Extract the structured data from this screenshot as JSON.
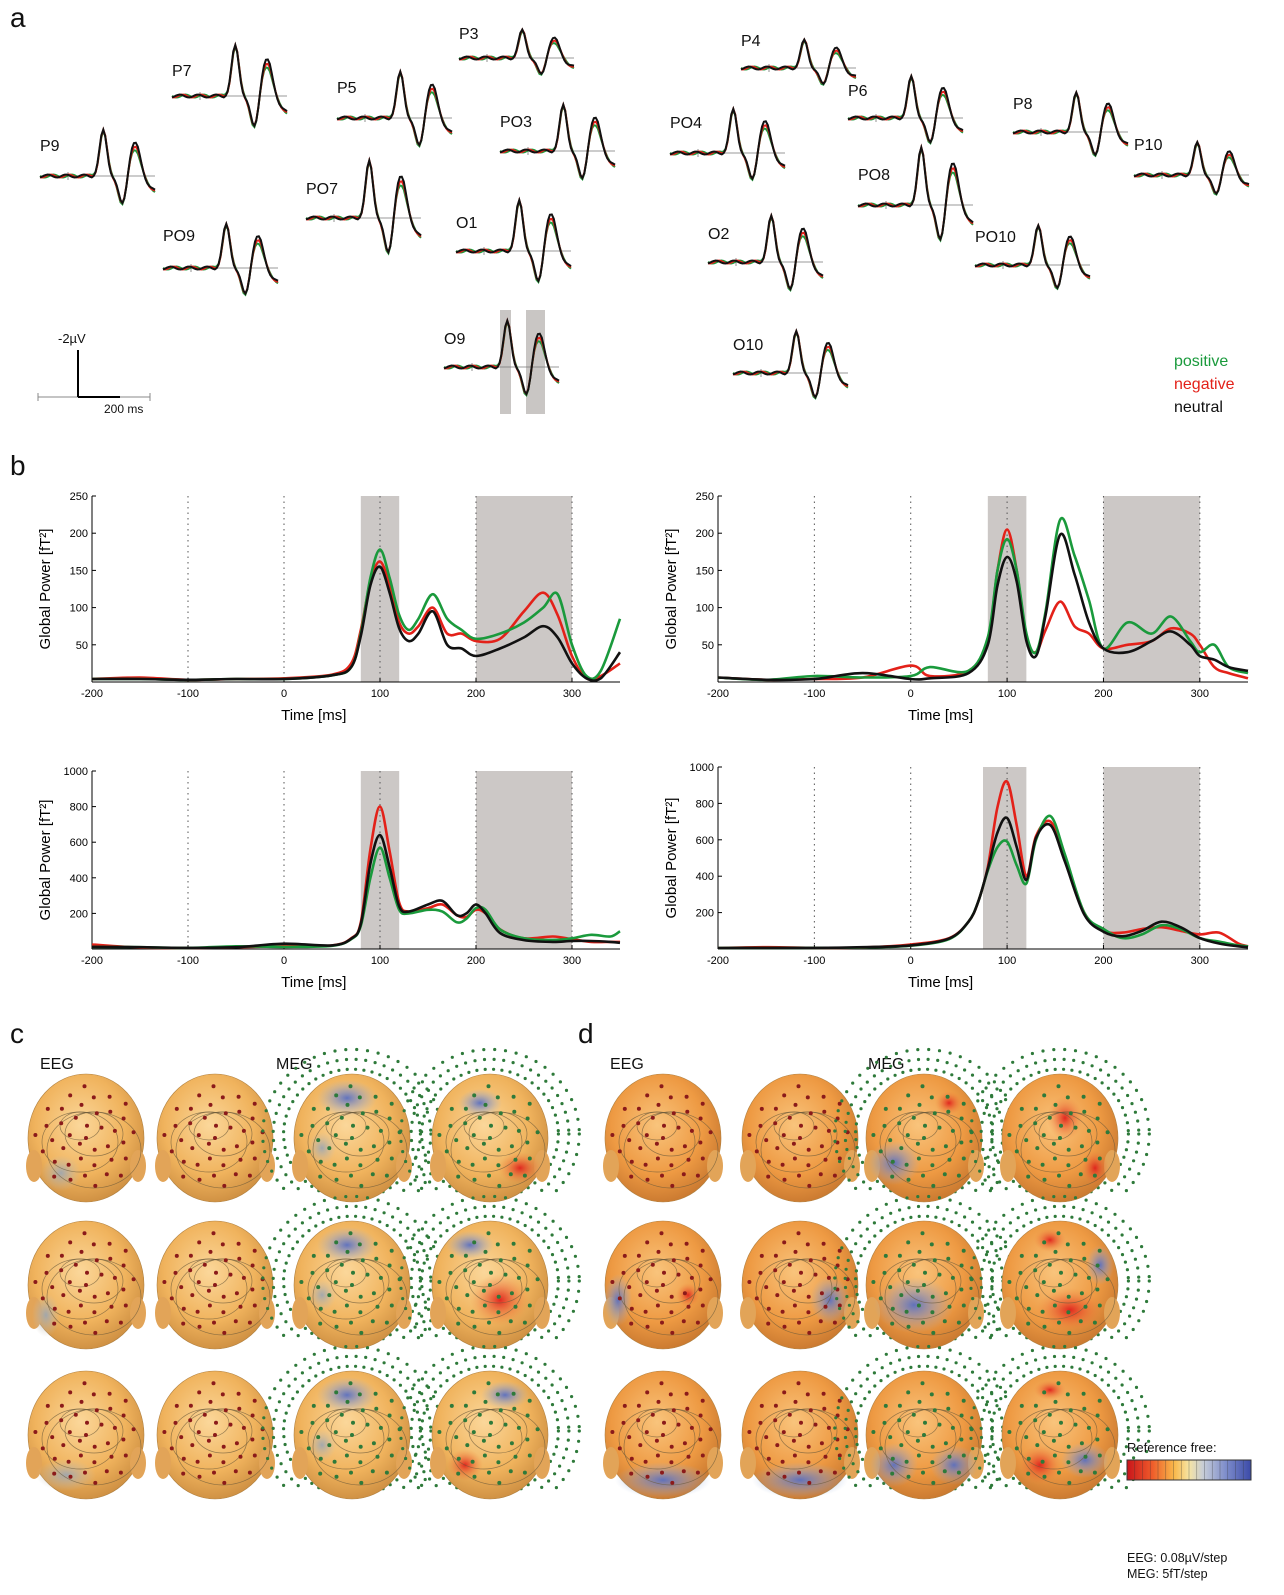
{
  "panels": {
    "a": "a",
    "b": "b",
    "c": "c",
    "d": "d"
  },
  "erp": {
    "channels": [
      "P9",
      "P7",
      "PO9",
      "P5",
      "PO7",
      "P3",
      "PO3",
      "O1",
      "O9",
      "P4",
      "PO4",
      "O2",
      "O10",
      "P6",
      "PO8",
      "P8",
      "PO10",
      "P10"
    ],
    "scale_amp": "-2µV",
    "scale_time": "200 ms",
    "legend": {
      "positive": {
        "label": "positive",
        "color": "#1a9a3c"
      },
      "negative": {
        "label": "negative",
        "color": "#e32119"
      },
      "neutral": {
        "label": "neutral",
        "color": "#111111"
      }
    }
  },
  "chart_data": [
    {
      "type": "line",
      "ylabel": "Global Power [fT²]",
      "xlabel": "Time [ms]",
      "xlim": [
        -200,
        350
      ],
      "ylim": [
        0,
        250
      ],
      "x_ticks": [
        -200,
        -100,
        0,
        100,
        200,
        300
      ],
      "y_ticks": [
        50,
        100,
        150,
        200,
        250
      ],
      "shaded": [
        [
          80,
          120
        ],
        [
          200,
          300
        ]
      ],
      "x": [
        -200,
        -150,
        -100,
        -50,
        0,
        50,
        70,
        80,
        90,
        100,
        110,
        120,
        130,
        140,
        155,
        170,
        185,
        200,
        225,
        250,
        270,
        285,
        300,
        315,
        330,
        350
      ],
      "series": [
        {
          "color": "#e32119",
          "values": [
            4,
            6,
            3,
            4,
            5,
            10,
            25,
            70,
            135,
            162,
            130,
            80,
            65,
            75,
            100,
            65,
            65,
            55,
            58,
            95,
            120,
            90,
            35,
            5,
            8,
            25
          ]
        },
        {
          "color": "#1a9a3c",
          "values": [
            4,
            4,
            3,
            4,
            4,
            9,
            20,
            65,
            140,
            178,
            140,
            90,
            70,
            85,
            118,
            85,
            70,
            58,
            65,
            80,
            100,
            118,
            50,
            8,
            15,
            85
          ]
        },
        {
          "color": "#111111",
          "values": [
            4,
            4,
            3,
            4,
            4,
            9,
            20,
            62,
            130,
            155,
            120,
            72,
            55,
            65,
            95,
            50,
            45,
            35,
            45,
            60,
            75,
            60,
            25,
            5,
            5,
            40
          ]
        }
      ]
    },
    {
      "type": "line",
      "ylabel": "Global Power [fT²]",
      "xlabel": "Time [ms]",
      "xlim": [
        -200,
        350
      ],
      "ylim": [
        0,
        250
      ],
      "x_ticks": [
        -200,
        -100,
        0,
        100,
        200,
        300
      ],
      "y_ticks": [
        50,
        100,
        150,
        200,
        250
      ],
      "shaded": [
        [
          80,
          120
        ],
        [
          200,
          300
        ]
      ],
      "x": [
        -200,
        -150,
        -100,
        -50,
        0,
        20,
        60,
        80,
        90,
        100,
        110,
        120,
        130,
        140,
        155,
        170,
        185,
        200,
        225,
        250,
        270,
        290,
        300,
        315,
        330,
        350
      ],
      "series": [
        {
          "color": "#e32119",
          "values": [
            6,
            3,
            4,
            6,
            22,
            8,
            15,
            55,
            150,
            205,
            150,
            60,
            40,
            70,
            108,
            75,
            65,
            45,
            50,
            55,
            72,
            65,
            50,
            20,
            12,
            5
          ]
        },
        {
          "color": "#1a9a3c",
          "values": [
            6,
            3,
            8,
            6,
            8,
            20,
            15,
            60,
            150,
            192,
            150,
            65,
            40,
            95,
            218,
            170,
            110,
            45,
            80,
            65,
            88,
            55,
            40,
            50,
            20,
            12
          ]
        },
        {
          "color": "#111111",
          "values": [
            6,
            3,
            4,
            12,
            4,
            5,
            12,
            50,
            130,
            168,
            135,
            55,
            35,
            90,
            198,
            145,
            80,
            45,
            40,
            55,
            68,
            50,
            35,
            30,
            20,
            15
          ]
        }
      ]
    },
    {
      "type": "line",
      "ylabel": "Global Power [fT²]",
      "xlabel": "Time [ms]",
      "xlim": [
        -200,
        350
      ],
      "ylim": [
        0,
        1000
      ],
      "x_ticks": [
        -200,
        -100,
        0,
        100,
        200,
        300
      ],
      "y_ticks": [
        200,
        400,
        600,
        800,
        1000
      ],
      "shaded": [
        [
          80,
          120
        ],
        [
          200,
          300
        ]
      ],
      "x": [
        -200,
        -150,
        -100,
        -50,
        0,
        50,
        70,
        80,
        90,
        100,
        110,
        120,
        130,
        150,
        165,
        180,
        190,
        200,
        210,
        225,
        250,
        280,
        300,
        320,
        340,
        350
      ],
      "series": [
        {
          "color": "#e32119",
          "values": [
            25,
            8,
            6,
            10,
            15,
            20,
            60,
            150,
            560,
            800,
            550,
            260,
            210,
            230,
            250,
            190,
            180,
            220,
            200,
            110,
            60,
            70,
            55,
            40,
            40,
            40
          ]
        },
        {
          "color": "#1a9a3c",
          "values": [
            12,
            10,
            6,
            15,
            12,
            18,
            55,
            130,
            400,
            570,
            400,
            220,
            200,
            220,
            210,
            150,
            170,
            230,
            220,
            110,
            60,
            50,
            60,
            80,
            70,
            100
          ]
        },
        {
          "color": "#111111",
          "values": [
            12,
            10,
            6,
            10,
            30,
            20,
            58,
            140,
            480,
            640,
            460,
            240,
            210,
            250,
            270,
            190,
            200,
            250,
            200,
            90,
            50,
            40,
            45,
            45,
            40,
            35
          ]
        }
      ]
    },
    {
      "type": "line",
      "ylabel": "Global Power [fT²]",
      "xlabel": "Time [ms]",
      "xlim": [
        -200,
        350
      ],
      "ylim": [
        0,
        1000
      ],
      "x_ticks": [
        -200,
        -100,
        0,
        100,
        200,
        300
      ],
      "y_ticks": [
        200,
        400,
        600,
        800,
        1000
      ],
      "shaded": [
        [
          75,
          120
        ],
        [
          200,
          300
        ]
      ],
      "x": [
        -200,
        -150,
        -100,
        -50,
        0,
        40,
        60,
        70,
        80,
        90,
        100,
        110,
        120,
        130,
        145,
        160,
        180,
        200,
        220,
        240,
        260,
        280,
        300,
        320,
        340,
        350
      ],
      "series": [
        {
          "color": "#e32119",
          "values": [
            5,
            10,
            6,
            8,
            25,
            60,
            150,
            260,
            450,
            780,
            920,
            680,
            400,
            620,
            700,
            500,
            200,
            100,
            90,
            110,
            120,
            100,
            80,
            90,
            30,
            15
          ]
        },
        {
          "color": "#1a9a3c",
          "values": [
            5,
            6,
            6,
            8,
            18,
            55,
            150,
            260,
            430,
            560,
            590,
            460,
            360,
            600,
            730,
            520,
            200,
            110,
            60,
            80,
            130,
            110,
            60,
            40,
            20,
            15
          ]
        },
        {
          "color": "#111111",
          "values": [
            5,
            6,
            6,
            10,
            20,
            58,
            150,
            260,
            440,
            640,
            720,
            560,
            380,
            610,
            680,
            480,
            190,
            95,
            70,
            100,
            150,
            120,
            60,
            30,
            15,
            10
          ]
        }
      ]
    }
  ],
  "time_axis_label": "Time [ms]",
  "power_axis_label": "Global Power [fT²]",
  "topo": {
    "c": {
      "eeg": "EEG",
      "meg": "MEG"
    },
    "d": {
      "eeg": "EEG",
      "meg": "MEG"
    }
  },
  "colorbar": {
    "title": "Reference free:",
    "eeg_step": "EEG: 0.08µV/step",
    "meg_step": "MEG: 5fT/step"
  }
}
